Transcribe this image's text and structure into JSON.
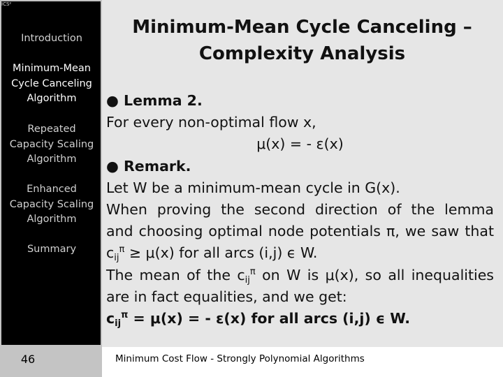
{
  "logo_text": "ICS²",
  "sidebar": {
    "items": [
      {
        "label": "Introduction"
      },
      {
        "label": "Minimum-Mean Cycle Canceling Algorithm"
      },
      {
        "label": "Repeated Capacity Scaling Algorithm"
      },
      {
        "label": "Enhanced Capacity Scaling Algorithm"
      },
      {
        "label": "Summary"
      }
    ],
    "page_number": "46"
  },
  "slide": {
    "title": "Minimum-Mean Cycle Canceling – Complexity Analysis",
    "lemma_heading": "● Lemma 2.",
    "lemma_line": "For every non-optimal flow x,",
    "lemma_formula": "μ(x) = - ε(x)",
    "remark_heading": "● Remark.",
    "remark_line1": "Let W be a minimum-mean cycle in G(x).",
    "remark_line2": "When proving the second direction of the lemma",
    "remark_line3": "and choosing optimal node potentials π, we saw that",
    "c": "c",
    "sub_ij": "ij",
    "sup_pi": "π",
    "remark_line4_rest": " ≥ μ(x) for all arcs (i,j) ϵ W.",
    "remark_line5_a": "The mean of the c",
    "remark_line5_b": " on W is μ(x), so all inequalities",
    "remark_line6": "are in fact equalities, and we get:",
    "result_rest": " = μ(x) = - ε(x) for all arcs (i,j) ϵ W."
  },
  "footer": {
    "text": "Minimum Cost Flow - Strongly Polynomial Algorithms"
  }
}
